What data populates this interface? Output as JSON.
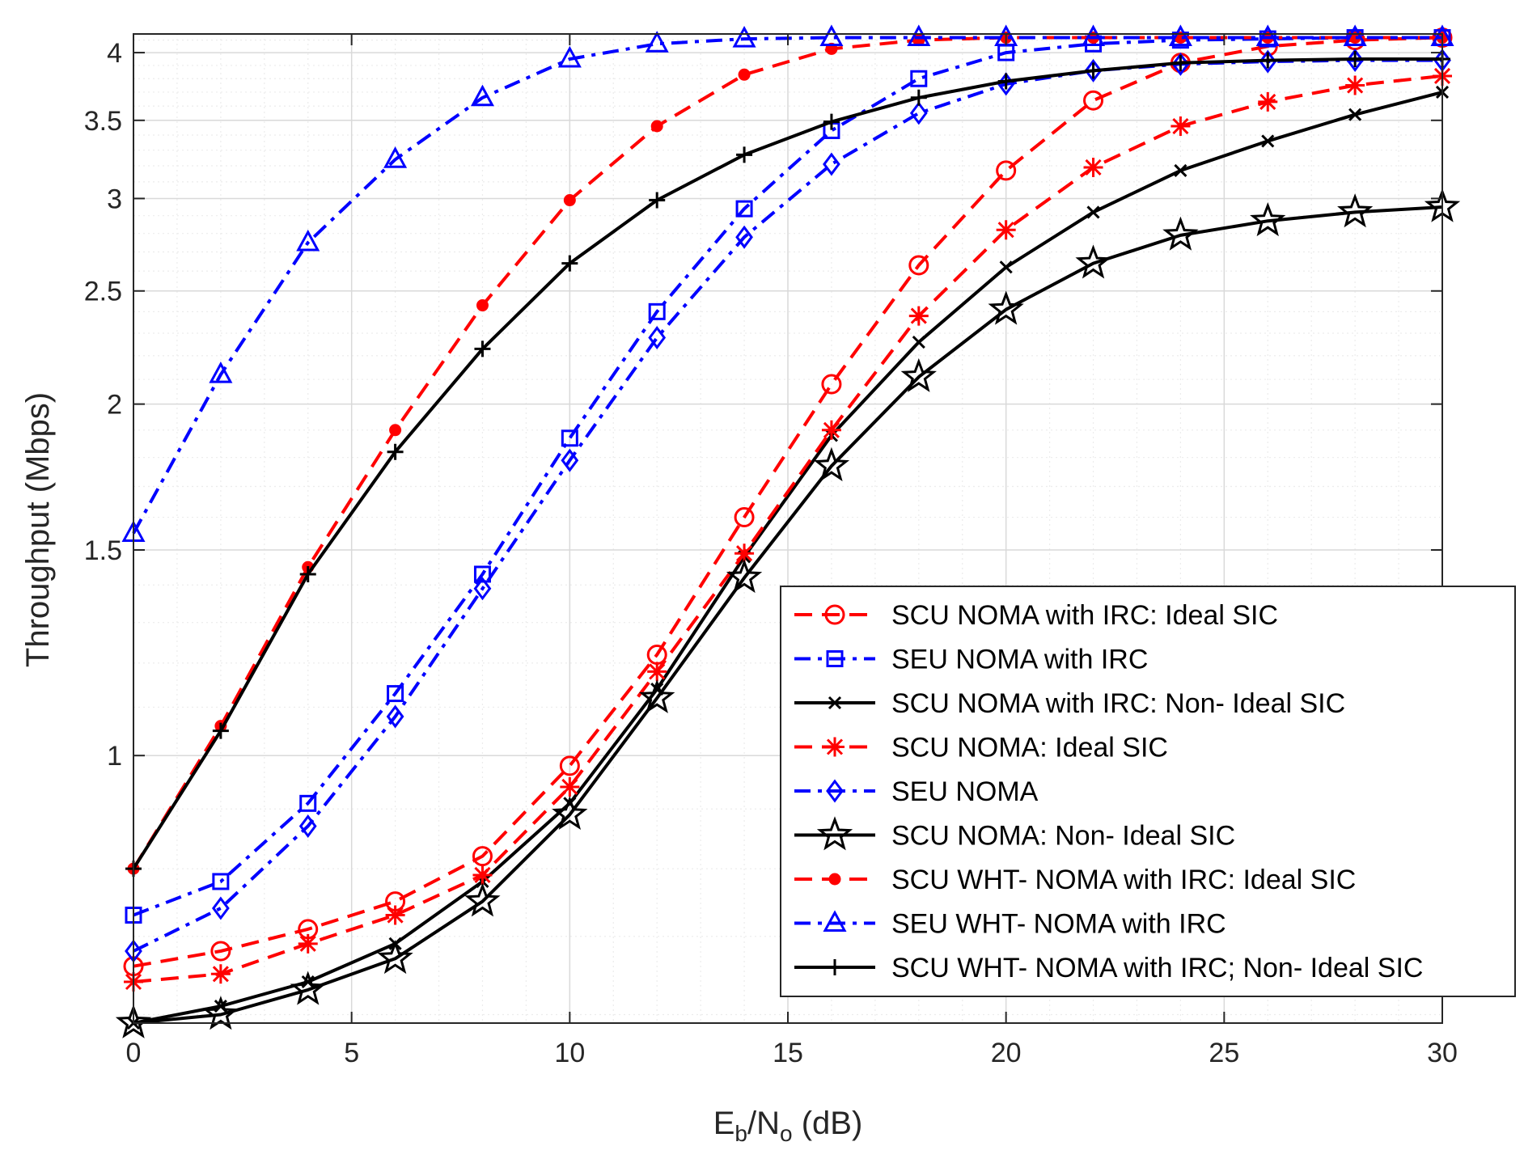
{
  "chart_data": {
    "type": "line",
    "xlabel": {
      "main": "E",
      "sub1": "b",
      "mid": "/N",
      "sub2": "o",
      "tail": " (dB)"
    },
    "ylabel": "Throughput (Mbps)",
    "xlim": [
      0,
      30
    ],
    "ylim": [
      0.59,
      4.15
    ],
    "yscale": "log",
    "grid": true,
    "minor_grid": true,
    "legend_position": "bottom-right",
    "x_ticks": [
      0,
      5,
      10,
      15,
      20,
      25,
      30
    ],
    "x_tick_labels": [
      "0",
      "5",
      "10",
      "15",
      "20",
      "25",
      "30"
    ],
    "y_ticks": [
      1,
      1.5,
      2,
      2.5,
      3,
      3.5,
      4
    ],
    "y_tick_labels": [
      "1",
      "1.5",
      "2",
      "2.5",
      "3",
      "3.5",
      "4"
    ],
    "x": [
      0,
      2,
      4,
      6,
      8,
      10,
      12,
      14,
      16,
      18,
      20,
      22,
      24,
      26,
      28,
      30
    ],
    "series": [
      {
        "name": "SCU NOMA with IRC: Ideal SIC",
        "color": "#ff0000",
        "dash": "dashed",
        "marker": "circle-open",
        "values": [
          0.66,
          0.68,
          0.71,
          0.75,
          0.82,
          0.98,
          1.22,
          1.6,
          2.08,
          2.63,
          3.17,
          3.64,
          3.92,
          4.05,
          4.1,
          4.12
        ]
      },
      {
        "name": "SEU NOMA with IRC",
        "color": "#0000ff",
        "dash": "dashdot",
        "marker": "square-open",
        "values": [
          0.73,
          0.78,
          0.91,
          1.13,
          1.43,
          1.87,
          2.4,
          2.94,
          3.43,
          3.8,
          4.0,
          4.07,
          4.1,
          4.11,
          4.12,
          4.12
        ]
      },
      {
        "name": "SCU NOMA with IRC: Non- Ideal SIC",
        "color": "#000000",
        "dash": "solid",
        "marker": "x",
        "values": [
          0.59,
          0.61,
          0.64,
          0.69,
          0.78,
          0.91,
          1.14,
          1.48,
          1.88,
          2.26,
          2.62,
          2.92,
          3.17,
          3.36,
          3.54,
          3.7
        ]
      },
      {
        "name": "SCU NOMA: Ideal SIC",
        "color": "#ff0000",
        "dash": "dashed",
        "marker": "asterisk",
        "values": [
          0.64,
          0.65,
          0.69,
          0.73,
          0.79,
          0.94,
          1.18,
          1.49,
          1.9,
          2.38,
          2.82,
          3.19,
          3.46,
          3.63,
          3.75,
          3.82
        ]
      },
      {
        "name": "SEU NOMA",
        "color": "#0000ff",
        "dash": "dashdot",
        "marker": "diamond-open",
        "values": [
          0.68,
          0.74,
          0.87,
          1.08,
          1.39,
          1.79,
          2.28,
          2.78,
          3.21,
          3.55,
          3.76,
          3.86,
          3.91,
          3.93,
          3.94,
          3.94
        ]
      },
      {
        "name": "SCU NOMA: Non- Ideal SIC",
        "color": "#000000",
        "dash": "solid",
        "marker": "star-open",
        "values": [
          0.59,
          0.6,
          0.63,
          0.67,
          0.75,
          0.89,
          1.12,
          1.42,
          1.77,
          2.11,
          2.41,
          2.64,
          2.79,
          2.87,
          2.92,
          2.95
        ]
      },
      {
        "name": "SCU WHT- NOMA with IRC: Ideal SIC",
        "color": "#ff0000",
        "dash": "dashed",
        "marker": "dot",
        "values": [
          0.8,
          1.06,
          1.45,
          1.9,
          2.43,
          2.99,
          3.46,
          3.83,
          4.03,
          4.1,
          4.12,
          4.12,
          4.12,
          4.12,
          4.12,
          4.12
        ]
      },
      {
        "name": "SEU WHT- NOMA with IRC",
        "color": "#0000ff",
        "dash": "dashdot",
        "marker": "triangle-open",
        "values": [
          1.55,
          2.12,
          2.75,
          3.24,
          3.66,
          3.95,
          4.07,
          4.11,
          4.12,
          4.12,
          4.12,
          4.12,
          4.12,
          4.12,
          4.12,
          4.12
        ]
      },
      {
        "name": "SCU WHT- NOMA with IRC; Non- Ideal SIC",
        "color": "#000000",
        "dash": "solid",
        "marker": "plus",
        "values": [
          0.8,
          1.05,
          1.43,
          1.82,
          2.23,
          2.64,
          2.99,
          3.27,
          3.49,
          3.66,
          3.78,
          3.86,
          3.92,
          3.94,
          3.95,
          3.95
        ]
      }
    ]
  }
}
